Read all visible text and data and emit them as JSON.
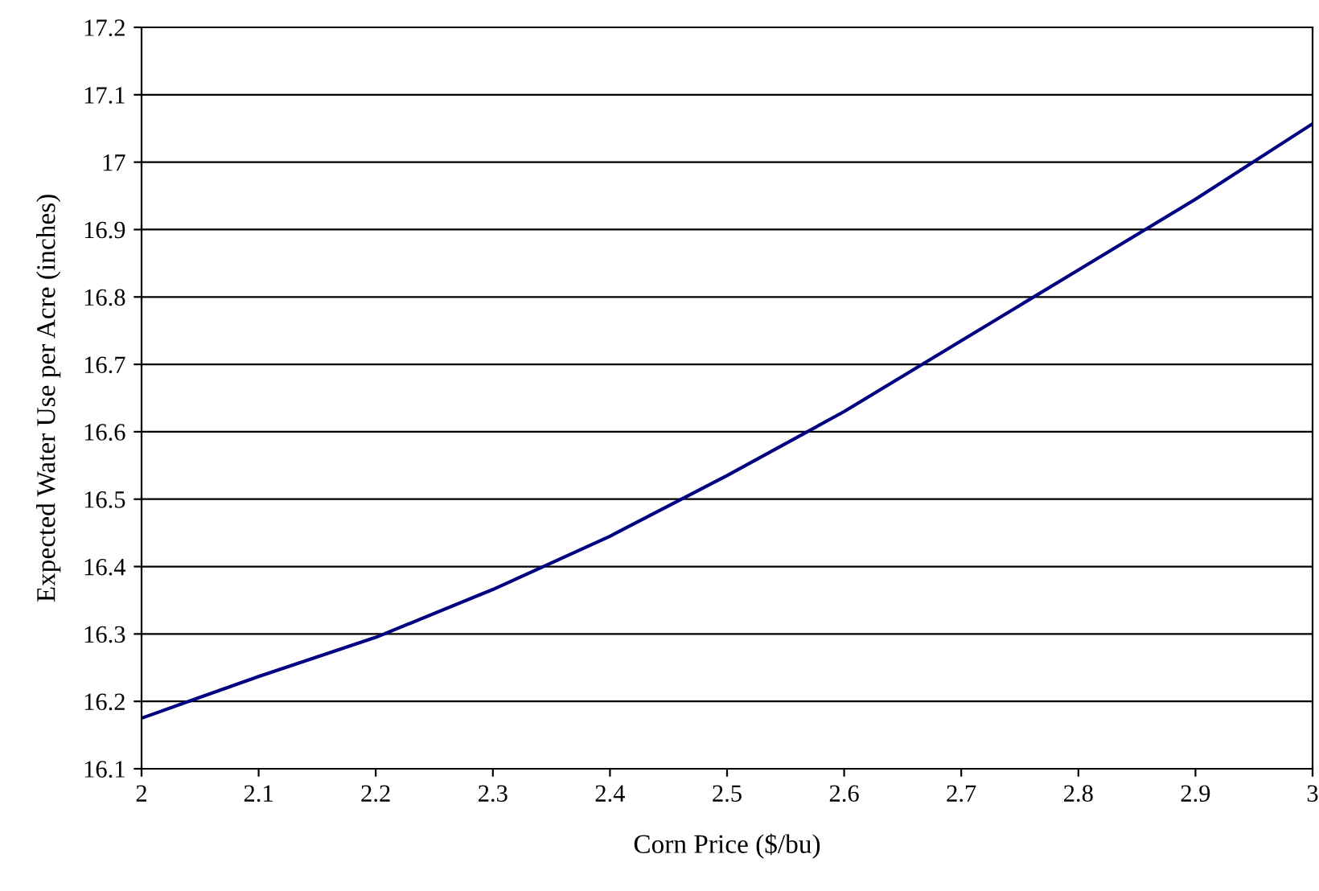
{
  "chart_data": {
    "type": "line",
    "xlabel": "Corn Price ($/bu)",
    "ylabel": "Expected Water Use per Acre (inches)",
    "x": [
      2.0,
      2.1,
      2.2,
      2.3,
      2.4,
      2.5,
      2.6,
      2.7,
      2.8,
      2.9,
      3.0
    ],
    "series": [
      {
        "color": "#000080",
        "values": [
          16.175,
          16.237,
          16.295,
          16.366,
          16.445,
          16.535,
          16.63,
          16.735,
          16.84,
          16.945,
          17.057
        ]
      }
    ],
    "xlim": [
      2,
      3
    ],
    "xticks": [
      2,
      2.1,
      2.2,
      2.3,
      2.4,
      2.5,
      2.6,
      2.7,
      2.8,
      2.9,
      3
    ],
    "ylim": [
      16.1,
      17.2
    ],
    "yticks": [
      16.1,
      16.2,
      16.3,
      16.4,
      16.5,
      16.6,
      16.7,
      16.8,
      16.9,
      17,
      17.1,
      17.2
    ],
    "grid": "y",
    "marker": "none",
    "line_style": "solid"
  }
}
